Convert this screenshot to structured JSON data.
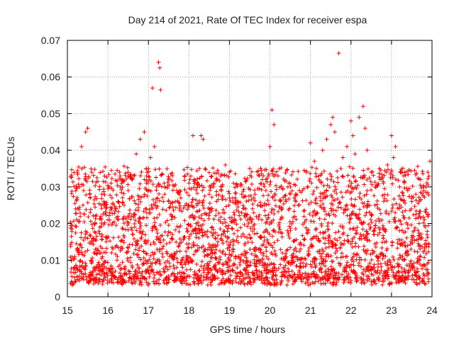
{
  "chart_data": {
    "type": "scatter",
    "title": "Day 214 of 2021, Rate Of TEC Index for receiver espa",
    "xlabel": "GPS time / hours",
    "ylabel": "ROTI / TECUs",
    "xlim": [
      15,
      24
    ],
    "ylim": [
      0,
      0.07
    ],
    "grid": true,
    "marker": "+",
    "color": "#ff0000",
    "x_ticks": [
      15,
      16,
      17,
      18,
      19,
      20,
      21,
      22,
      23,
      24
    ],
    "x_tick_labels": [
      "15",
      "16",
      "17",
      "18",
      "19",
      "20",
      "21",
      "22",
      "23",
      "24"
    ],
    "y_ticks": [
      0,
      0.01,
      0.02,
      0.03,
      0.04,
      0.05,
      0.06,
      0.07
    ],
    "y_tick_labels": [
      "0",
      "0.01",
      "0.02",
      "0.03",
      "0.04",
      "0.05",
      "0.06",
      "0.07"
    ],
    "x": [
      15.2,
      15.3,
      15.35,
      15.4,
      15.45,
      15.5,
      15.55,
      15.6,
      15.7,
      15.8,
      15.9,
      16.0,
      16.1,
      16.2,
      16.3,
      16.4,
      16.5,
      16.6,
      16.7,
      16.8,
      16.9,
      16.95,
      17.0,
      17.05,
      17.1,
      17.15,
      17.2,
      17.25,
      17.28,
      17.3,
      17.4,
      17.5,
      17.6,
      17.7,
      17.8,
      17.9,
      18.0,
      18.1,
      18.2,
      18.3,
      18.35,
      18.4,
      18.5,
      18.6,
      18.7,
      18.8,
      18.9,
      19.0,
      19.1,
      19.2,
      19.3,
      19.4,
      19.5,
      19.6,
      19.7,
      19.8,
      19.9,
      20.0,
      20.05,
      20.1,
      20.2,
      20.3,
      20.4,
      20.5,
      20.6,
      20.7,
      20.8,
      20.9,
      21.0,
      21.1,
      21.2,
      21.3,
      21.4,
      21.5,
      21.55,
      21.6,
      21.7,
      21.75,
      21.8,
      21.9,
      22.0,
      22.05,
      22.1,
      22.2,
      22.3,
      22.35,
      22.4,
      22.5,
      22.6,
      22.7,
      22.8,
      22.9,
      23.0,
      23.05,
      23.1,
      23.2,
      23.3,
      23.4,
      23.5,
      23.6,
      23.7,
      23.8,
      23.9,
      23.95
    ],
    "y": [
      0.024,
      0.03,
      0.041,
      0.029,
      0.045,
      0.046,
      0.028,
      0.034,
      0.022,
      0.019,
      0.026,
      0.021,
      0.027,
      0.024,
      0.033,
      0.025,
      0.029,
      0.032,
      0.039,
      0.043,
      0.045,
      0.031,
      0.035,
      0.038,
      0.057,
      0.041,
      0.03,
      0.064,
      0.0625,
      0.0565,
      0.028,
      0.026,
      0.022,
      0.029,
      0.027,
      0.033,
      0.031,
      0.044,
      0.025,
      0.044,
      0.043,
      0.035,
      0.028,
      0.03,
      0.032,
      0.029,
      0.036,
      0.027,
      0.031,
      0.026,
      0.028,
      0.024,
      0.035,
      0.027,
      0.025,
      0.021,
      0.029,
      0.041,
      0.051,
      0.047,
      0.033,
      0.024,
      0.026,
      0.028,
      0.027,
      0.025,
      0.029,
      0.034,
      0.042,
      0.037,
      0.033,
      0.04,
      0.043,
      0.047,
      0.049,
      0.045,
      0.0665,
      0.035,
      0.038,
      0.041,
      0.048,
      0.044,
      0.039,
      0.049,
      0.052,
      0.046,
      0.04,
      0.034,
      0.03,
      0.035,
      0.031,
      0.036,
      0.044,
      0.038,
      0.041,
      0.03,
      0.033,
      0.029,
      0.026,
      0.028,
      0.022,
      0.03,
      0.034,
      0.037
    ]
  }
}
